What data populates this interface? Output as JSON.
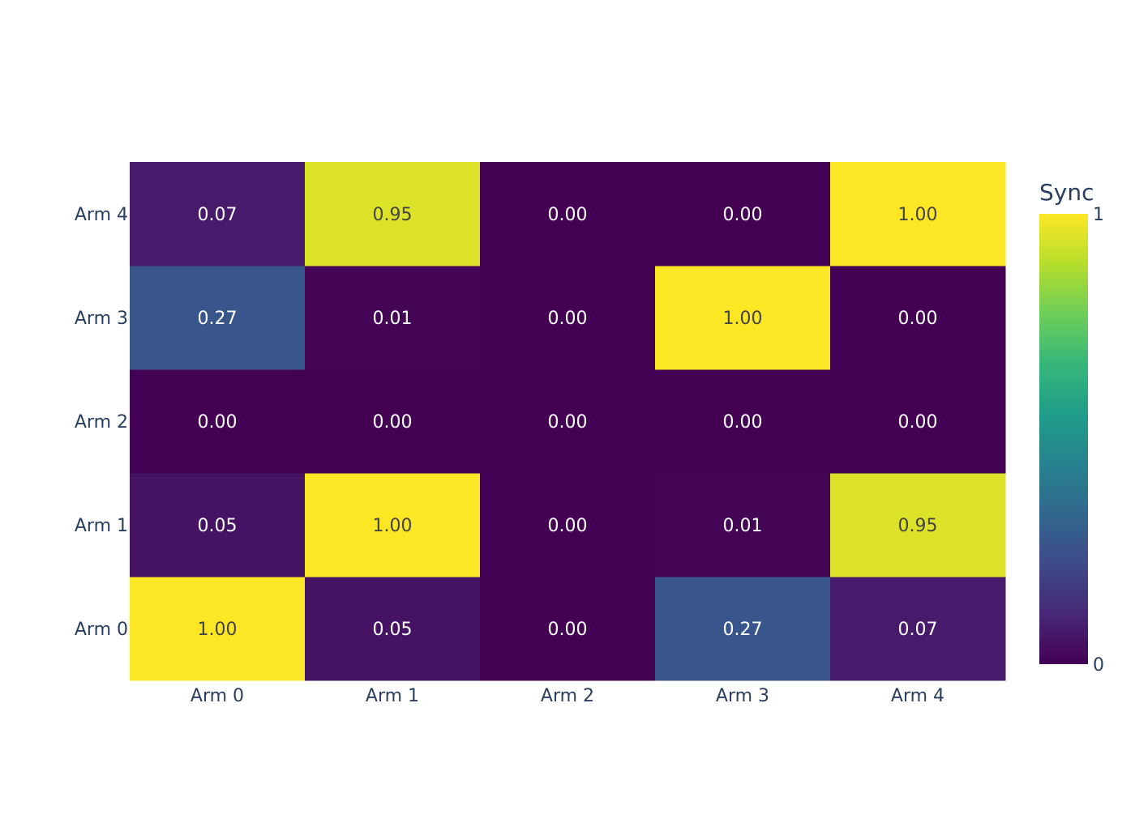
{
  "chart_data": {
    "type": "heatmap",
    "x_categories": [
      "Arm 0",
      "Arm 1",
      "Arm 2",
      "Arm 3",
      "Arm 4"
    ],
    "y_categories": [
      "Arm 0",
      "Arm 1",
      "Arm 2",
      "Arm 3",
      "Arm 4"
    ],
    "z": [
      [
        1.0,
        0.05,
        0.0,
        0.27,
        0.07
      ],
      [
        0.05,
        1.0,
        0.0,
        0.01,
        0.95
      ],
      [
        0.0,
        0.0,
        0.0,
        0.0,
        0.0
      ],
      [
        0.27,
        0.01,
        0.0,
        1.0,
        0.0
      ],
      [
        0.07,
        0.95,
        0.0,
        0.0,
        1.0
      ]
    ],
    "cell_labels": [
      [
        "1.00",
        "0.05",
        "0.00",
        "0.27",
        "0.07"
      ],
      [
        "0.05",
        "1.00",
        "0.00",
        "0.01",
        "0.95"
      ],
      [
        "0.00",
        "0.00",
        "0.00",
        "0.00",
        "0.00"
      ],
      [
        "0.27",
        "0.01",
        "0.00",
        "1.00",
        "0.00"
      ],
      [
        "0.07",
        "0.95",
        "0.00",
        "0.00",
        "1.00"
      ]
    ],
    "zlim": [
      0,
      1
    ],
    "colorscale": "Viridis",
    "colorbar": {
      "title": "Sync",
      "tick_labels": [
        "0",
        "1"
      ]
    },
    "title": "",
    "xlabel": "",
    "ylabel": ""
  }
}
